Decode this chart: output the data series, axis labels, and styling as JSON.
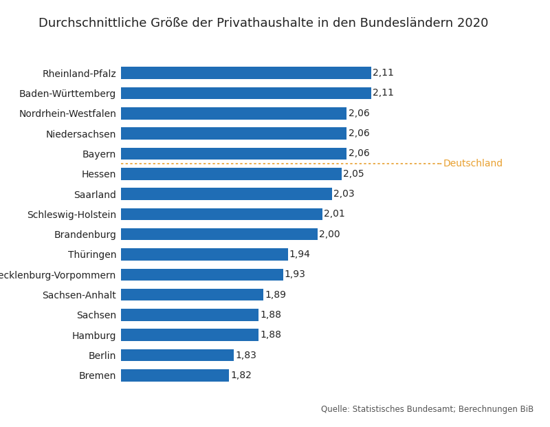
{
  "title": "Durchschnittliche Größe der Privathaushalte in den Bundesländern 2020",
  "categories": [
    "Bremen",
    "Berlin",
    "Hamburg",
    "Sachsen",
    "Sachsen-Anhalt",
    "Mecklenburg-Vorpommern",
    "Thüringen",
    "Brandenburg",
    "Schleswig-Holstein",
    "Saarland",
    "Hessen",
    "Bayern",
    "Niedersachsen",
    "Nordrhein-Westfalen",
    "Baden-Württemberg",
    "Rheinland-Pfalz"
  ],
  "values": [
    1.82,
    1.83,
    1.88,
    1.88,
    1.89,
    1.93,
    1.94,
    2.0,
    2.01,
    2.03,
    2.05,
    2.06,
    2.06,
    2.06,
    2.11,
    2.11
  ],
  "bar_color": "#1F6DB5",
  "deutschland_value": 2.06,
  "deutschland_color": "#E8A030",
  "deutschland_label": "Deutschland",
  "source_text": "Quelle: Statistisches Bundesamt; Berechnungen BiB",
  "xlim": [
    1.6,
    2.25
  ],
  "background_color": "#FFFFFF",
  "title_fontsize": 13,
  "label_fontsize": 10,
  "value_fontsize": 10,
  "source_fontsize": 8.5
}
